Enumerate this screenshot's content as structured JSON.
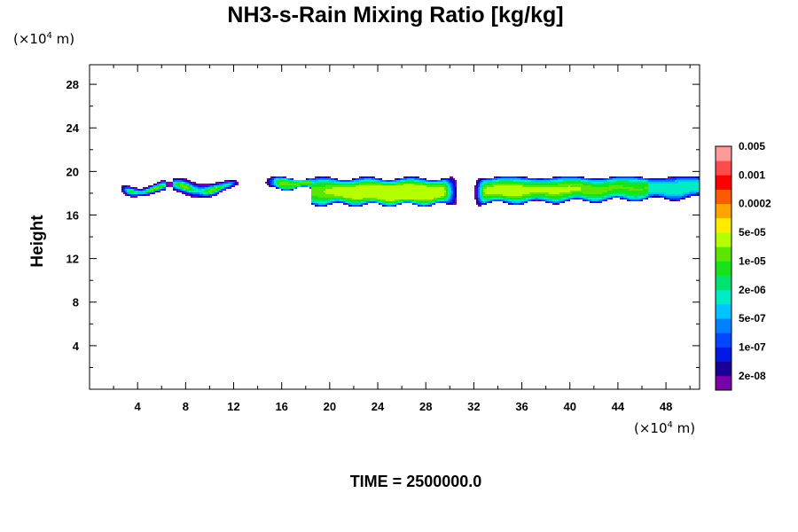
{
  "chart_data": {
    "type": "heatmap",
    "title": "NH3-s-Rain Mixing Ratio [kg/kg]",
    "ylabel": "Height",
    "x_unit": {
      "prefix": "(×10",
      "exp": "4",
      "suffix": " m)"
    },
    "y_unit": {
      "prefix": "(×10",
      "exp": "4",
      "suffix": " m)"
    },
    "xlim": [
      0,
      50.8
    ],
    "ylim": [
      0,
      29.8
    ],
    "x_ticks": [
      "4",
      "8",
      "12",
      "16",
      "20",
      "24",
      "28",
      "32",
      "36",
      "40",
      "44",
      "48"
    ],
    "y_ticks": [
      "4",
      "8",
      "12",
      "16",
      "20",
      "24",
      "28"
    ],
    "time_label": "TIME = 2500000.0",
    "colorbar": {
      "colors": [
        "#7a00aa",
        "#1a0096",
        "#0019e6",
        "#0047ff",
        "#0082ff",
        "#00c3ff",
        "#00ecc4",
        "#00e36e",
        "#18e318",
        "#5ae600",
        "#b4ff00",
        "#ffec00",
        "#ffa500",
        "#ff5a00",
        "#ff0000",
        "#ff4b4b",
        "#ff9a9a"
      ],
      "labels": [
        "2e-08",
        "1e-07",
        "5e-07",
        "2e-06",
        "1e-05",
        "5e-05",
        "0.0002",
        "0.001",
        "0.005"
      ]
    },
    "structures": [
      {
        "region": "left thin band",
        "x_range": [
          2.5,
          12.5
        ],
        "y_range": [
          17.5,
          19.4
        ],
        "peak_level": "5e-07"
      },
      {
        "region": "left-center band",
        "x_range": [
          14,
          31
        ],
        "y_range": [
          16.7,
          19.6
        ],
        "peak_level": "5e-05",
        "peak_x": 26.5,
        "peak_y": 18.0
      },
      {
        "region": "right band",
        "x_range": [
          32,
          50.8
        ],
        "y_range": [
          16.8,
          19.6
        ],
        "peak_level": "1e-05",
        "peak_x": 34.5,
        "peak_y": 18.2
      }
    ]
  }
}
